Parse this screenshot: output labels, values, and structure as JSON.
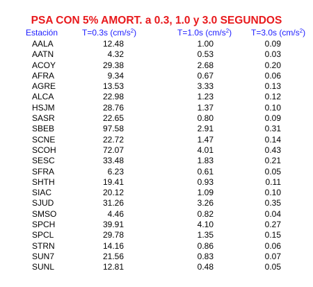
{
  "title": "PSA CON 5% AMORT. a 0.3, 1.0 y 3.0 SEGUNDOS",
  "headers": {
    "station": "Estación",
    "col1": "T=0.3s (cm/",
    "col2": "T=1.0s (cm/",
    "col3": "T=3.0s (cm/",
    "unit_base": "s",
    "unit_exp": "2",
    "close": ")"
  },
  "rows": [
    {
      "station": "AALA",
      "t03": "12.48",
      "t10": "1.00",
      "t30": "0.09"
    },
    {
      "station": "AATN",
      "t03": "4.32",
      "t10": "0.53",
      "t30": "0.03"
    },
    {
      "station": "ACOY",
      "t03": "29.38",
      "t10": "2.68",
      "t30": "0.20"
    },
    {
      "station": "AFRA",
      "t03": "9.34",
      "t10": "0.67",
      "t30": "0.06"
    },
    {
      "station": "AGRE",
      "t03": "13.53",
      "t10": "3.33",
      "t30": "0.13"
    },
    {
      "station": "ALCA",
      "t03": "22.98",
      "t10": "1.23",
      "t30": "0.12"
    },
    {
      "station": "HSJM",
      "t03": "28.76",
      "t10": "1.37",
      "t30": "0.10"
    },
    {
      "station": "SASR",
      "t03": "22.65",
      "t10": "0.80",
      "t30": "0.09"
    },
    {
      "station": "SBEB",
      "t03": "97.58",
      "t10": "2.91",
      "t30": "0.31"
    },
    {
      "station": "SCNE",
      "t03": "22.72",
      "t10": "1.47",
      "t30": "0.14"
    },
    {
      "station": "SCOH",
      "t03": "72.07",
      "t10": "4.01",
      "t30": "0.43"
    },
    {
      "station": "SESC",
      "t03": "33.48",
      "t10": "1.83",
      "t30": "0.21"
    },
    {
      "station": "SFRA",
      "t03": "6.23",
      "t10": "0.61",
      "t30": "0.05"
    },
    {
      "station": "SHTH",
      "t03": "19.41",
      "t10": "0.93",
      "t30": "0.11"
    },
    {
      "station": "SIAC",
      "t03": "20.12",
      "t10": "1.09",
      "t30": "0.10"
    },
    {
      "station": "SJUD",
      "t03": "31.26",
      "t10": "3.26",
      "t30": "0.35"
    },
    {
      "station": "SMSO",
      "t03": "4.46",
      "t10": "0.82",
      "t30": "0.04"
    },
    {
      "station": "SPCH",
      "t03": "39.91",
      "t10": "4.10",
      "t30": "0.27"
    },
    {
      "station": "SPCL",
      "t03": "29.78",
      "t10": "1.35",
      "t30": "0.15"
    },
    {
      "station": "STRN",
      "t03": "14.16",
      "t10": "0.86",
      "t30": "0.06"
    },
    {
      "station": "SUN7",
      "t03": "21.56",
      "t10": "0.83",
      "t30": "0.07"
    },
    {
      "station": "SUNL",
      "t03": "12.81",
      "t10": "0.48",
      "t30": "0.05"
    }
  ],
  "colors": {
    "title": "#e8191c",
    "header": "#1a1aff",
    "text": "#000000"
  }
}
